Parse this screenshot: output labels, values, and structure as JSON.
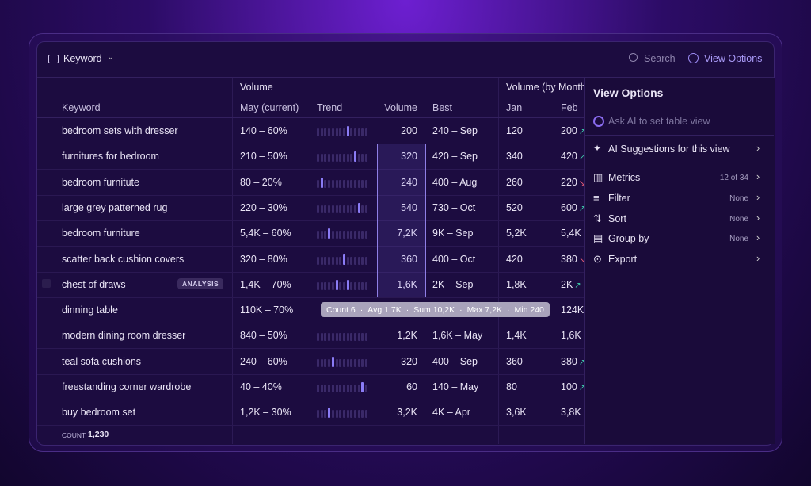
{
  "header": {
    "view_label": "Keyword",
    "search": "Search",
    "view_options": "View Options"
  },
  "table": {
    "group_headers": [
      "Volume",
      "Volume (by Months"
    ],
    "columns": [
      "Keyword",
      "May (current)",
      "Trend",
      "Volume",
      "Best",
      "Jan",
      "Feb"
    ],
    "rows": [
      [
        "bedroom sets with dresser",
        "140 – 60%",
        "200",
        "240 – Sep",
        "120",
        "200"
      ],
      [
        "furnitures for bedroom",
        "210 – 50%",
        "320",
        "420 – Sep",
        "340",
        "420"
      ],
      [
        "bedroom furnitute",
        "80 – 20%",
        "240",
        "400 – Aug",
        "260",
        "220"
      ],
      [
        "large grey patterned rug",
        "220 – 30%",
        "540",
        "730 – Oct",
        "520",
        "600"
      ],
      [
        "bedroom furniture",
        "5,4K – 60%",
        "7,2K",
        "9K – Sep",
        "5,2K",
        "5,4K"
      ],
      [
        "scatter back cushion covers",
        "320 – 80%",
        "360",
        "400 – Oct",
        "420",
        "380"
      ],
      [
        "chest of draws",
        "1,4K – 70%",
        "1,6K",
        "2K – Sep",
        "1,8K",
        "2K"
      ],
      [
        "dinning table",
        "110K – 70%",
        null,
        null,
        null,
        "124K"
      ],
      [
        "modern dining room dresser",
        "840 – 50%",
        "1,2K",
        "1,6K – May",
        "1,4K",
        "1,6K"
      ],
      [
        "teal sofa cushions",
        "240 – 60%",
        "320",
        "400 – Sep",
        "360",
        "380"
      ],
      [
        "freestanding corner wardrobe",
        "40 – 40%",
        "60",
        "140 – May",
        "80",
        "100"
      ],
      [
        "buy bedroom set",
        "1,2K – 30%",
        "3,2K",
        "4K – Apr",
        "3,6K",
        "3,8K"
      ]
    ],
    "badge": "ANALYSIS",
    "tooltip": [
      "Count 6",
      "Avg 1,7K",
      "Sum 10,2K",
      "Max 7,2K",
      "Min 240"
    ],
    "footer": {
      "label": "COUNT",
      "value": "1,230"
    }
  },
  "panel": {
    "title": "View Options",
    "ask_ai": "Ask AI to set table view",
    "suggestions": "AI Suggestions for this view",
    "items": [
      {
        "label": "Metrics",
        "value": "12 of 34"
      },
      {
        "label": "Filter",
        "value": "None"
      },
      {
        "label": "Sort",
        "value": "None"
      },
      {
        "label": "Group by",
        "value": "None"
      },
      {
        "label": "Export"
      }
    ]
  }
}
